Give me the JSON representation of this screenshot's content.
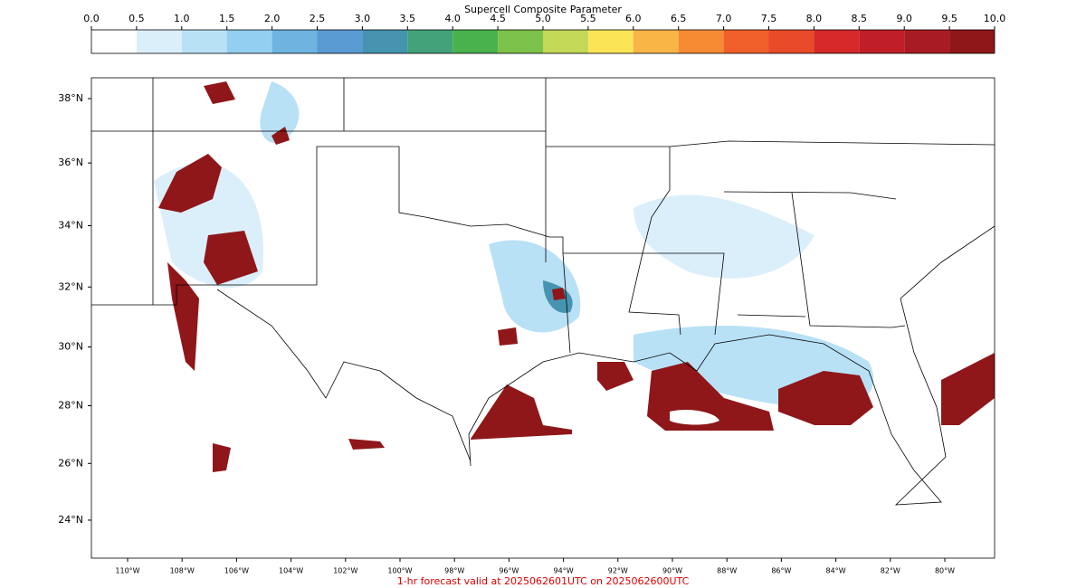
{
  "colorbar": {
    "title": "Supercell Composite Parameter",
    "ticks": [
      {
        "value": 0,
        "label": "0.0"
      },
      {
        "value": 0.5,
        "label": "0.5"
      },
      {
        "value": 1,
        "label": "1.0"
      },
      {
        "value": 1.5,
        "label": "1.5"
      },
      {
        "value": 2,
        "label": "2.0"
      },
      {
        "value": 2.5,
        "label": "2.5"
      },
      {
        "value": 3,
        "label": "3.0"
      },
      {
        "value": 3.5,
        "label": "3.5"
      },
      {
        "value": 4,
        "label": "4.0"
      },
      {
        "value": 4.5,
        "label": "4.5"
      },
      {
        "value": 5,
        "label": "5.0"
      },
      {
        "value": 5.5,
        "label": "5.5"
      },
      {
        "value": 6,
        "label": "6.0"
      },
      {
        "value": 6.5,
        "label": "6.5"
      },
      {
        "value": 7,
        "label": "7.0"
      },
      {
        "value": 7.5,
        "label": "7.5"
      },
      {
        "value": 8,
        "label": "8.0"
      },
      {
        "value": 8.5,
        "label": "8.5"
      },
      {
        "value": 9,
        "label": "9.0"
      },
      {
        "value": 9.5,
        "label": "9.5"
      },
      {
        "value": 10,
        "label": "10.0"
      }
    ],
    "colors": [
      "#ffffff",
      "#dbeffb",
      "#b8e1f6",
      "#93cff0",
      "#6fb3e0",
      "#5a9bd3",
      "#4694b0",
      "#43a27a",
      "#49b24c",
      "#7cc14a",
      "#c3d856",
      "#fbe456",
      "#f9b545",
      "#f68b33",
      "#f05f29",
      "#e84a2a",
      "#d7282a",
      "#c11f27",
      "#a91b24",
      "#8f1619"
    ]
  },
  "map": {
    "lat_ticks": [
      {
        "value": 38,
        "label": "38°N"
      },
      {
        "value": 36,
        "label": "36°N"
      },
      {
        "value": 34,
        "label": "34°N"
      },
      {
        "value": 32,
        "label": "32°N"
      },
      {
        "value": 30,
        "label": "30°N"
      },
      {
        "value": 28,
        "label": "28°N"
      },
      {
        "value": 26,
        "label": "26°N"
      },
      {
        "value": 24,
        "label": "24°N"
      }
    ],
    "lon_ticks": [
      {
        "value": -110,
        "label": "110°W"
      },
      {
        "value": -108,
        "label": "108°W"
      },
      {
        "value": -106,
        "label": "106°W"
      },
      {
        "value": -104,
        "label": "104°W"
      },
      {
        "value": -102,
        "label": "102°W"
      },
      {
        "value": -100,
        "label": "100°W"
      },
      {
        "value": -98,
        "label": "98°W"
      },
      {
        "value": -96,
        "label": "96°W"
      },
      {
        "value": -94,
        "label": "94°W"
      },
      {
        "value": -92,
        "label": "92°W"
      },
      {
        "value": -90,
        "label": "90°W"
      },
      {
        "value": -88,
        "label": "88°W"
      },
      {
        "value": -86,
        "label": "86°W"
      },
      {
        "value": -84,
        "label": "84°W"
      },
      {
        "value": -82,
        "label": "82°W"
      },
      {
        "value": -80,
        "label": "80°W"
      }
    ]
  },
  "footer": "1-hr forecast valid at 2025062601UTC on 2025062600UTC"
}
